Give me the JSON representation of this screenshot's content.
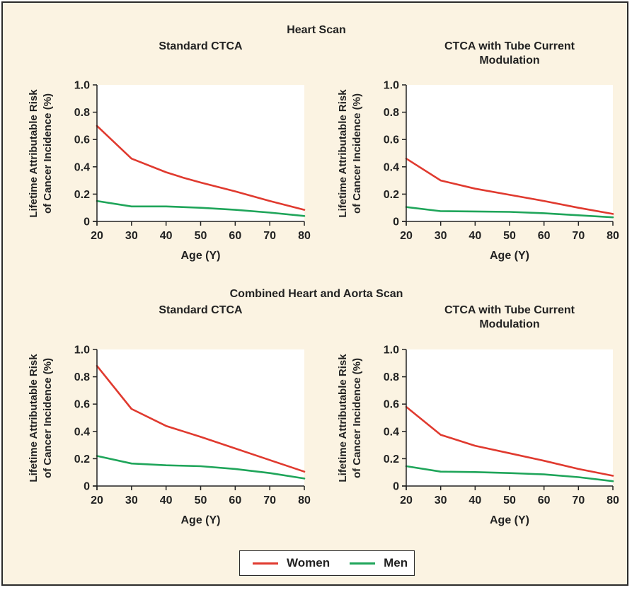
{
  "colors": {
    "women": "#e03a2f",
    "men": "#1fa55a",
    "frame_bg": "#fbf3e2",
    "plot_bg": "#ffffff",
    "text": "#222222"
  },
  "sections": [
    {
      "title": "Heart Scan"
    },
    {
      "title": "Combined Heart and Aorta Scan"
    }
  ],
  "legend": {
    "placement": "bottom-center",
    "items": [
      {
        "label": "Women",
        "color": "#e03a2f"
      },
      {
        "label": "Men",
        "color": "#1fa55a"
      }
    ]
  },
  "chart_data": [
    {
      "type": "line",
      "section": "Heart Scan",
      "title": [
        "Standard CTCA"
      ],
      "xlabel": "Age (Y)",
      "ylabel": [
        "Lifetime Attributable Risk",
        "of Cancer Incidence (%)"
      ],
      "xlim": [
        20,
        80
      ],
      "ylim": [
        0,
        1.0
      ],
      "xticks": [
        "20",
        "30",
        "40",
        "50",
        "60",
        "70",
        "80"
      ],
      "yticks": [
        "0",
        "0.2",
        "0.4",
        "0.6",
        "0.8",
        "1.0"
      ],
      "grid": false,
      "series": [
        {
          "name": "Women",
          "color": "#e03a2f",
          "points": [
            [
              20,
              0.7
            ],
            [
              30,
              0.46
            ],
            [
              40,
              0.36
            ],
            [
              45,
              0.32
            ],
            [
              50,
              0.285
            ],
            [
              60,
              0.22
            ],
            [
              70,
              0.15
            ],
            [
              80,
              0.085
            ]
          ]
        },
        {
          "name": "Men",
          "color": "#1fa55a",
          "points": [
            [
              20,
              0.15
            ],
            [
              30,
              0.11
            ],
            [
              40,
              0.11
            ],
            [
              50,
              0.1
            ],
            [
              60,
              0.085
            ],
            [
              70,
              0.065
            ],
            [
              80,
              0.04
            ]
          ]
        }
      ]
    },
    {
      "type": "line",
      "section": "Heart Scan",
      "title": [
        "CTCA with Tube Current",
        "Modulation"
      ],
      "xlabel": "Age (Y)",
      "ylabel": [
        "Lifetime Attributable Risk",
        "of Cancer Incidence (%)"
      ],
      "xlim": [
        20,
        80
      ],
      "ylim": [
        0,
        1.0
      ],
      "xticks": [
        "20",
        "30",
        "40",
        "50",
        "60",
        "70",
        "80"
      ],
      "yticks": [
        "0",
        "0.2",
        "0.4",
        "0.6",
        "0.8",
        "1.0"
      ],
      "grid": false,
      "series": [
        {
          "name": "Women",
          "color": "#e03a2f",
          "points": [
            [
              20,
              0.46
            ],
            [
              30,
              0.3
            ],
            [
              40,
              0.24
            ],
            [
              50,
              0.195
            ],
            [
              60,
              0.15
            ],
            [
              70,
              0.1
            ],
            [
              80,
              0.055
            ]
          ]
        },
        {
          "name": "Men",
          "color": "#1fa55a",
          "points": [
            [
              20,
              0.105
            ],
            [
              30,
              0.075
            ],
            [
              40,
              0.073
            ],
            [
              50,
              0.07
            ],
            [
              60,
              0.06
            ],
            [
              70,
              0.045
            ],
            [
              80,
              0.03
            ]
          ]
        }
      ]
    },
    {
      "type": "line",
      "section": "Combined Heart and Aorta Scan",
      "title": [
        "Standard CTCA"
      ],
      "xlabel": "Age (Y)",
      "ylabel": [
        "Lifetime Attributable Risk",
        "of Cancer Incidence (%)"
      ],
      "xlim": [
        20,
        80
      ],
      "ylim": [
        0,
        1.0
      ],
      "xticks": [
        "20",
        "30",
        "40",
        "50",
        "60",
        "70",
        "80"
      ],
      "yticks": [
        "0",
        "0.2",
        "0.4",
        "0.6",
        "0.8",
        "1.0"
      ],
      "grid": false,
      "series": [
        {
          "name": "Women",
          "color": "#e03a2f",
          "points": [
            [
              20,
              0.88
            ],
            [
              30,
              0.565
            ],
            [
              40,
              0.44
            ],
            [
              50,
              0.36
            ],
            [
              60,
              0.275
            ],
            [
              70,
              0.19
            ],
            [
              80,
              0.105
            ]
          ]
        },
        {
          "name": "Men",
          "color": "#1fa55a",
          "points": [
            [
              20,
              0.22
            ],
            [
              30,
              0.165
            ],
            [
              40,
              0.152
            ],
            [
              50,
              0.145
            ],
            [
              60,
              0.125
            ],
            [
              70,
              0.095
            ],
            [
              80,
              0.055
            ]
          ]
        }
      ]
    },
    {
      "type": "line",
      "section": "Combined Heart and Aorta Scan",
      "title": [
        "CTCA with Tube Current",
        "Modulation"
      ],
      "xlabel": "Age (Y)",
      "ylabel": [
        "Lifetime Attributable Risk",
        "of Cancer Incidence (%)"
      ],
      "xlim": [
        20,
        80
      ],
      "ylim": [
        0,
        1.0
      ],
      "xticks": [
        "20",
        "30",
        "40",
        "50",
        "60",
        "70",
        "80"
      ],
      "yticks": [
        "0",
        "0.2",
        "0.4",
        "0.6",
        "0.8",
        "1.0"
      ],
      "grid": false,
      "series": [
        {
          "name": "Women",
          "color": "#e03a2f",
          "points": [
            [
              20,
              0.58
            ],
            [
              30,
              0.375
            ],
            [
              40,
              0.295
            ],
            [
              50,
              0.24
            ],
            [
              60,
              0.185
            ],
            [
              70,
              0.125
            ],
            [
              80,
              0.075
            ]
          ]
        },
        {
          "name": "Men",
          "color": "#1fa55a",
          "points": [
            [
              20,
              0.145
            ],
            [
              30,
              0.105
            ],
            [
              40,
              0.102
            ],
            [
              50,
              0.095
            ],
            [
              60,
              0.085
            ],
            [
              70,
              0.065
            ],
            [
              80,
              0.035
            ]
          ]
        }
      ]
    }
  ]
}
